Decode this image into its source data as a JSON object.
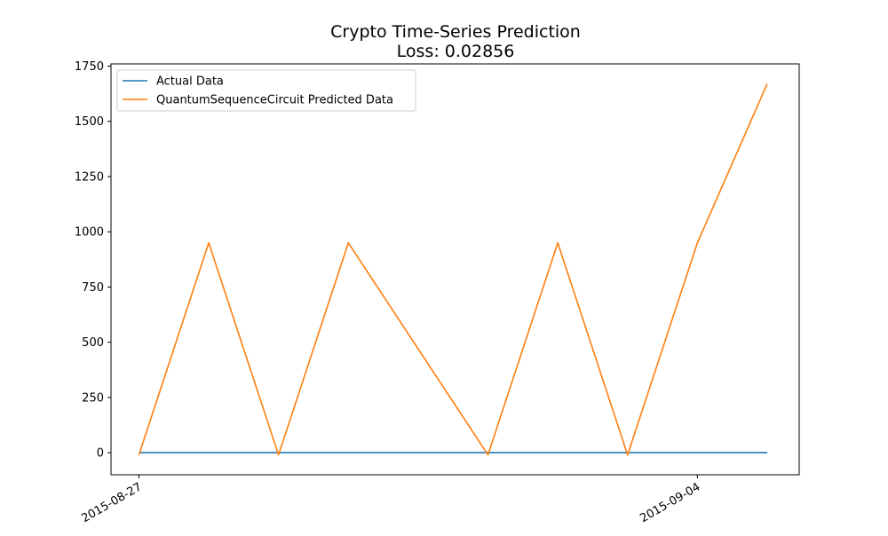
{
  "chart_data": {
    "type": "line",
    "title": "Crypto Time-Series Prediction",
    "subtitle": "Loss: 0.02856",
    "xlabel": "",
    "ylabel": "",
    "x": [
      "2015-08-27",
      "2015-08-28",
      "2015-08-29",
      "2015-08-30",
      "2015-08-31",
      "2015-09-01",
      "2015-09-02",
      "2015-09-03",
      "2015-09-04",
      "2015-09-05"
    ],
    "x_ticks": [
      "2015-08-27",
      "2015-09-04"
    ],
    "xlim": [
      "2015-08-26 14:24",
      "2015-09-05 11:00"
    ],
    "y_ticks": [
      0,
      250,
      500,
      750,
      1000,
      1250,
      1500,
      1750
    ],
    "ylim": [
      -100,
      1760
    ],
    "grid": false,
    "legend_position": "top-left",
    "series": [
      {
        "name": "Actual Data",
        "color": "#1f77b4",
        "values": [
          0,
          0,
          0,
          0,
          0,
          0,
          0,
          0,
          0,
          0
        ]
      },
      {
        "name": "QuantumSequenceCircuit Predicted Data",
        "color": "#ff7f0e",
        "values": [
          -10,
          950,
          -10,
          950,
          null,
          -10,
          950,
          -10,
          950,
          1670
        ]
      }
    ]
  }
}
